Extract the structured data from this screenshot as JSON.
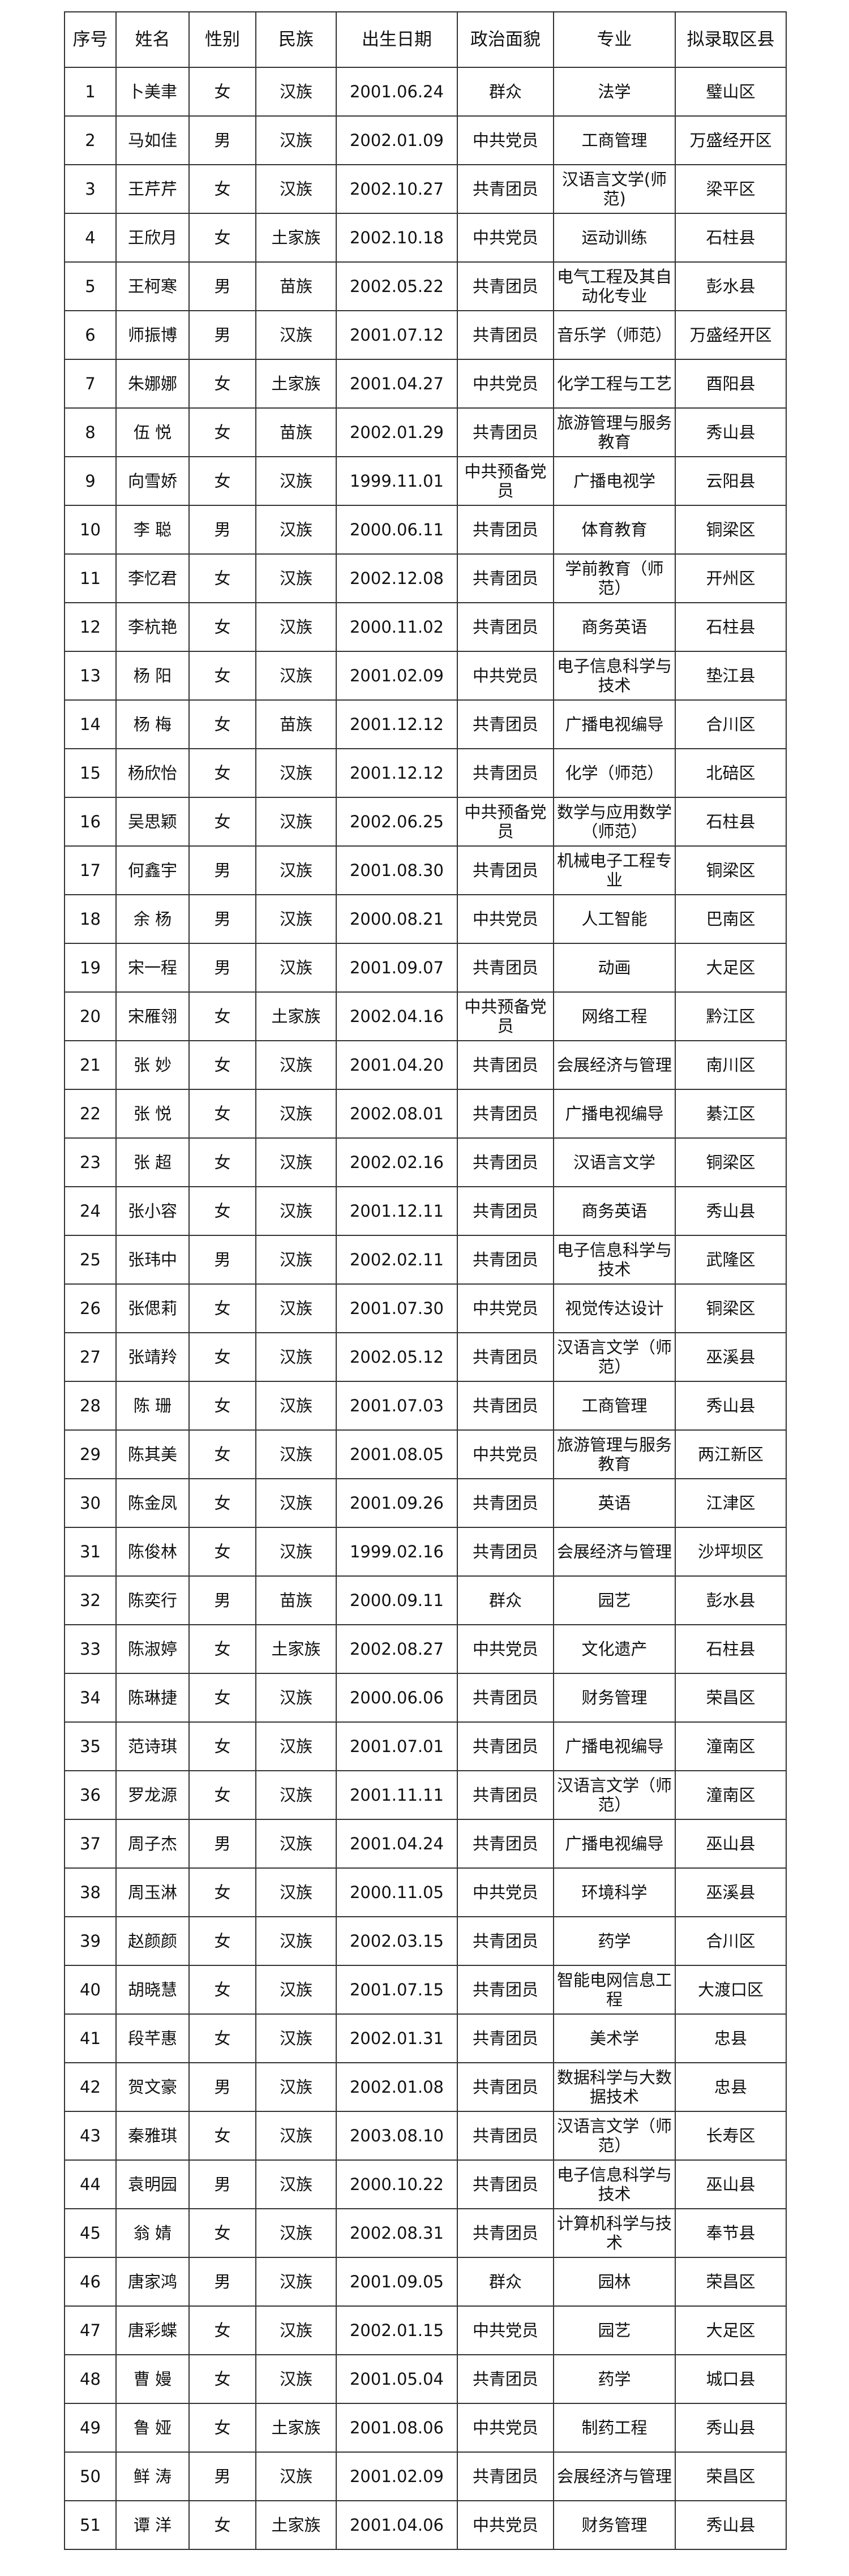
{
  "headers": [
    "序号",
    "姓名",
    "性别",
    "民族",
    "出生日期",
    "政治面貌",
    "专业",
    "拟录取区县"
  ],
  "rows": [
    [
      "1",
      "卜美聿",
      "女",
      "汉族",
      "2001.06.24",
      "群众",
      "法学",
      "璧山区"
    ],
    [
      "2",
      "马如佳",
      "男",
      "汉族",
      "2002.01.09",
      "中共党员",
      "工商管理",
      "万盛经开区"
    ],
    [
      "3",
      "王芹芹",
      "女",
      "汉族",
      "2002.10.27",
      "共青团员",
      "汉语言文学(师范)",
      "梁平区"
    ],
    [
      "4",
      "王欣月",
      "女",
      "土家族",
      "2002.10.18",
      "中共党员",
      "运动训练",
      "石柱县"
    ],
    [
      "5",
      "王柯寒",
      "男",
      "苗族",
      "2002.05.22",
      "共青团员",
      "电气工程及其自动化专业",
      "彭水县"
    ],
    [
      "6",
      "师振博",
      "男",
      "汉族",
      "2001.07.12",
      "共青团员",
      "音乐学（师范）",
      "万盛经开区"
    ],
    [
      "7",
      "朱娜娜",
      "女",
      "土家族",
      "2001.04.27",
      "中共党员",
      "化学工程与工艺",
      "酉阳县"
    ],
    [
      "8",
      "伍 悦",
      "女",
      "苗族",
      "2002.01.29",
      "共青团员",
      "旅游管理与服务教育",
      "秀山县"
    ],
    [
      "9",
      "向雪娇",
      "女",
      "汉族",
      "1999.11.01",
      "中共预备党员",
      "广播电视学",
      "云阳县"
    ],
    [
      "10",
      "李 聪",
      "男",
      "汉族",
      "2000.06.11",
      "共青团员",
      "体育教育",
      "铜梁区"
    ],
    [
      "11",
      "李忆君",
      "女",
      "汉族",
      "2002.12.08",
      "共青团员",
      "学前教育（师范）",
      "开州区"
    ],
    [
      "12",
      "李杭艳",
      "女",
      "汉族",
      "2000.11.02",
      "共青团员",
      "商务英语",
      "石柱县"
    ],
    [
      "13",
      "杨 阳",
      "女",
      "汉族",
      "2001.02.09",
      "中共党员",
      "电子信息科学与技术",
      "垫江县"
    ],
    [
      "14",
      "杨 梅",
      "女",
      "苗族",
      "2001.12.12",
      "共青团员",
      "广播电视编导",
      "合川区"
    ],
    [
      "15",
      "杨欣怡",
      "女",
      "汉族",
      "2001.12.12",
      "共青团员",
      "化学（师范）",
      "北碚区"
    ],
    [
      "16",
      "吴思颖",
      "女",
      "汉族",
      "2002.06.25",
      "中共预备党员",
      "数学与应用数学（师范）",
      "石柱县"
    ],
    [
      "17",
      "何鑫宇",
      "男",
      "汉族",
      "2001.08.30",
      "共青团员",
      "机械电子工程专业",
      "铜梁区"
    ],
    [
      "18",
      "余 杨",
      "男",
      "汉族",
      "2000.08.21",
      "中共党员",
      "人工智能",
      "巴南区"
    ],
    [
      "19",
      "宋一程",
      "男",
      "汉族",
      "2001.09.07",
      "共青团员",
      "动画",
      "大足区"
    ],
    [
      "20",
      "宋雁翎",
      "女",
      "土家族",
      "2002.04.16",
      "中共预备党员",
      "网络工程",
      "黔江区"
    ],
    [
      "21",
      "张 妙",
      "女",
      "汉族",
      "2001.04.20",
      "共青团员",
      "会展经济与管理",
      "南川区"
    ],
    [
      "22",
      "张 悦",
      "女",
      "汉族",
      "2002.08.01",
      "共青团员",
      "广播电视编导",
      "綦江区"
    ],
    [
      "23",
      "张 超",
      "女",
      "汉族",
      "2002.02.16",
      "共青团员",
      "汉语言文学",
      "铜梁区"
    ],
    [
      "24",
      "张小容",
      "女",
      "汉族",
      "2001.12.11",
      "共青团员",
      "商务英语",
      "秀山县"
    ],
    [
      "25",
      "张玮中",
      "男",
      "汉族",
      "2002.02.11",
      "共青团员",
      "电子信息科学与技术",
      "武隆区"
    ],
    [
      "26",
      "张偲莉",
      "女",
      "汉族",
      "2001.07.30",
      "中共党员",
      "视觉传达设计",
      "铜梁区"
    ],
    [
      "27",
      "张靖羚",
      "女",
      "汉族",
      "2002.05.12",
      "共青团员",
      "汉语言文学（师范）",
      "巫溪县"
    ],
    [
      "28",
      "陈 珊",
      "女",
      "汉族",
      "2001.07.03",
      "共青团员",
      "工商管理",
      "秀山县"
    ],
    [
      "29",
      "陈其美",
      "女",
      "汉族",
      "2001.08.05",
      "中共党员",
      "旅游管理与服务教育",
      "两江新区"
    ],
    [
      "30",
      "陈金凤",
      "女",
      "汉族",
      "2001.09.26",
      "共青团员",
      "英语",
      "江津区"
    ],
    [
      "31",
      "陈俊林",
      "女",
      "汉族",
      "1999.02.16",
      "共青团员",
      "会展经济与管理",
      "沙坪坝区"
    ],
    [
      "32",
      "陈奕行",
      "男",
      "苗族",
      "2000.09.11",
      "群众",
      "园艺",
      "彭水县"
    ],
    [
      "33",
      "陈淑婷",
      "女",
      "土家族",
      "2002.08.27",
      "中共党员",
      "文化遗产",
      "石柱县"
    ],
    [
      "34",
      "陈琳捷",
      "女",
      "汉族",
      "2000.06.06",
      "共青团员",
      "财务管理",
      "荣昌区"
    ],
    [
      "35",
      "范诗琪",
      "女",
      "汉族",
      "2001.07.01",
      "共青团员",
      "广播电视编导",
      "潼南区"
    ],
    [
      "36",
      "罗龙源",
      "女",
      "汉族",
      "2001.11.11",
      "共青团员",
      "汉语言文学（师范）",
      "潼南区"
    ],
    [
      "37",
      "周子杰",
      "男",
      "汉族",
      "2001.04.24",
      "共青团员",
      "广播电视编导",
      "巫山县"
    ],
    [
      "38",
      "周玉淋",
      "女",
      "汉族",
      "2000.11.05",
      "中共党员",
      "环境科学",
      "巫溪县"
    ],
    [
      "39",
      "赵颜颜",
      "女",
      "汉族",
      "2002.03.15",
      "共青团员",
      "药学",
      "合川区"
    ],
    [
      "40",
      "胡晓慧",
      "女",
      "汉族",
      "2001.07.15",
      "共青团员",
      "智能电网信息工程",
      "大渡口区"
    ],
    [
      "41",
      "段芊惠",
      "女",
      "汉族",
      "2002.01.31",
      "共青团员",
      "美术学",
      "忠县"
    ],
    [
      "42",
      "贺文豪",
      "男",
      "汉族",
      "2002.01.08",
      "共青团员",
      "数据科学与大数据技术",
      "忠县"
    ],
    [
      "43",
      "秦雅琪",
      "女",
      "汉族",
      "2003.08.10",
      "共青团员",
      "汉语言文学（师范）",
      "长寿区"
    ],
    [
      "44",
      "袁明园",
      "男",
      "汉族",
      "2000.10.22",
      "共青团员",
      "电子信息科学与技术",
      "巫山县"
    ],
    [
      "45",
      "翁 婧",
      "女",
      "汉族",
      "2002.08.31",
      "共青团员",
      "计算机科学与技术",
      "奉节县"
    ],
    [
      "46",
      "唐家鸿",
      "男",
      "汉族",
      "2001.09.05",
      "群众",
      "园林",
      "荣昌区"
    ],
    [
      "47",
      "唐彩蝶",
      "女",
      "汉族",
      "2002.01.15",
      "中共党员",
      "园艺",
      "大足区"
    ],
    [
      "48",
      "曹 嫚",
      "女",
      "汉族",
      "2001.05.04",
      "共青团员",
      "药学",
      "城口县"
    ],
    [
      "49",
      "鲁 娅",
      "女",
      "土家族",
      "2001.08.06",
      "中共党员",
      "制药工程",
      "秀山县"
    ],
    [
      "50",
      "鲜 涛",
      "男",
      "汉族",
      "2001.02.09",
      "共青团员",
      "会展经济与管理",
      "荣昌区"
    ],
    [
      "51",
      "谭 洋",
      "女",
      "土家族",
      "2001.04.06",
      "中共党员",
      "财务管理",
      "秀山县"
    ]
  ]
}
